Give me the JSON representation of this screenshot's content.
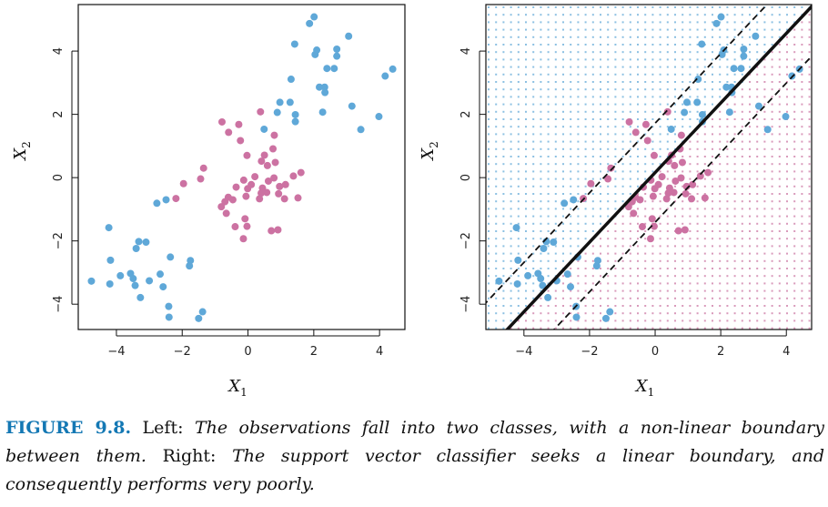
{
  "chart_data": [
    {
      "type": "scatter",
      "panel": "left",
      "xlabel": "X",
      "xlabel_sub": "1",
      "ylabel": "X",
      "ylabel_sub": "2",
      "xlim": [
        -5.16,
        4.77
      ],
      "ylim": [
        -4.8,
        5.47
      ],
      "xticks": [
        -4,
        -2,
        0,
        2,
        4
      ],
      "yticks": [
        -4,
        -2,
        0,
        2,
        4
      ],
      "series": [
        {
          "name": "class-blue",
          "color": "#5fa8d8",
          "points": [
            [
              2.01,
              5.08
            ],
            [
              1.87,
              4.87
            ],
            [
              3.06,
              4.47
            ],
            [
              1.42,
              4.22
            ],
            [
              2.09,
              4.03
            ],
            [
              2.04,
              3.89
            ],
            [
              2.7,
              4.06
            ],
            [
              2.7,
              3.84
            ],
            [
              4.4,
              3.43
            ],
            [
              4.17,
              3.21
            ],
            [
              2.4,
              3.45
            ],
            [
              2.62,
              3.45
            ],
            [
              1.31,
              3.11
            ],
            [
              2.17,
              2.86
            ],
            [
              2.33,
              2.86
            ],
            [
              2.34,
              2.69
            ],
            [
              0.97,
              2.38
            ],
            [
              1.28,
              2.38
            ],
            [
              0.89,
              2.06
            ],
            [
              1.44,
              1.99
            ],
            [
              1.44,
              1.77
            ],
            [
              2.27,
              2.07
            ],
            [
              3.16,
              2.26
            ],
            [
              3.98,
              1.93
            ],
            [
              3.43,
              1.52
            ],
            [
              0.49,
              1.53
            ],
            [
              -2.77,
              -0.81
            ],
            [
              -2.49,
              -0.7
            ],
            [
              -4.23,
              -1.58
            ],
            [
              -3.32,
              -2.02
            ],
            [
              -3.1,
              -2.04
            ],
            [
              -3.4,
              -2.24
            ],
            [
              -4.18,
              -2.61
            ],
            [
              -2.36,
              -2.51
            ],
            [
              -1.75,
              -2.62
            ],
            [
              -1.78,
              -2.79
            ],
            [
              -4.76,
              -3.27
            ],
            [
              -4.2,
              -3.36
            ],
            [
              -3.88,
              -3.1
            ],
            [
              -3.57,
              -3.03
            ],
            [
              -3.49,
              -3.19
            ],
            [
              -3.43,
              -3.41
            ],
            [
              -3.0,
              -3.26
            ],
            [
              -2.67,
              -3.05
            ],
            [
              -2.58,
              -3.45
            ],
            [
              -3.27,
              -3.79
            ],
            [
              -2.41,
              -4.07
            ],
            [
              -2.4,
              -4.41
            ],
            [
              -1.38,
              -4.24
            ],
            [
              -1.5,
              -4.45
            ]
          ]
        },
        {
          "name": "class-pink",
          "color": "#cc72a2",
          "points": [
            [
              0.38,
              2.08
            ],
            [
              -0.79,
              1.76
            ],
            [
              -0.28,
              1.68
            ],
            [
              -0.59,
              1.43
            ],
            [
              -0.23,
              1.17
            ],
            [
              0.8,
              1.34
            ],
            [
              0.76,
              0.91
            ],
            [
              -0.03,
              0.7
            ],
            [
              0.5,
              0.71
            ],
            [
              0.41,
              0.52
            ],
            [
              0.83,
              0.48
            ],
            [
              0.59,
              0.38
            ],
            [
              -1.35,
              0.3
            ],
            [
              -1.44,
              -0.04
            ],
            [
              -1.96,
              -0.19
            ],
            [
              -2.19,
              -0.66
            ],
            [
              -0.13,
              -0.08
            ],
            [
              0.21,
              0.03
            ],
            [
              -0.36,
              -0.3
            ],
            [
              -0.01,
              -0.35
            ],
            [
              0.1,
              -0.22
            ],
            [
              0.44,
              -0.33
            ],
            [
              0.62,
              -0.11
            ],
            [
              0.79,
              -0.01
            ],
            [
              0.57,
              -0.47
            ],
            [
              0.4,
              -0.49
            ],
            [
              0.96,
              -0.28
            ],
            [
              1.14,
              -0.22
            ],
            [
              1.38,
              0.05
            ],
            [
              1.61,
              0.16
            ],
            [
              0.93,
              -0.51
            ],
            [
              1.11,
              -0.67
            ],
            [
              1.52,
              -0.64
            ],
            [
              0.35,
              -0.67
            ],
            [
              -0.06,
              -0.59
            ],
            [
              -0.46,
              -0.7
            ],
            [
              -0.6,
              -0.62
            ],
            [
              -0.7,
              -0.76
            ],
            [
              -0.81,
              -0.92
            ],
            [
              -0.66,
              -1.13
            ],
            [
              -0.09,
              -1.3
            ],
            [
              -0.03,
              -1.54
            ],
            [
              -0.39,
              -1.55
            ],
            [
              -0.14,
              -1.93
            ],
            [
              0.71,
              -1.68
            ],
            [
              0.91,
              -1.65
            ]
          ]
        }
      ]
    },
    {
      "type": "scatter",
      "panel": "right",
      "xlabel": "X",
      "xlabel_sub": "1",
      "ylabel": "X",
      "ylabel_sub": "2",
      "xlim": [
        -5.16,
        4.77
      ],
      "ylim": [
        -4.8,
        5.47
      ],
      "xticks": [
        -4,
        -2,
        0,
        2,
        4
      ],
      "yticks": [
        -4,
        -2,
        0,
        2,
        4
      ],
      "same_points_as": "left",
      "decision_boundary": {
        "slope": 1.1,
        "intercept": 0.16
      },
      "margins": [
        {
          "slope": 1.1,
          "intercept": 1.72
        },
        {
          "slope": 1.1,
          "intercept": -1.41
        }
      ],
      "background_grid": true
    }
  ],
  "caption": {
    "figure_label": "FIGURE 9.8.",
    "left_label": " Left: ",
    "left_text": "The observations fall into two classes, with a non-linear boundary between them.",
    "right_label": " Right: ",
    "right_text": "The support vector classifier seeks a linear boundary, and consequently performs very poorly."
  }
}
